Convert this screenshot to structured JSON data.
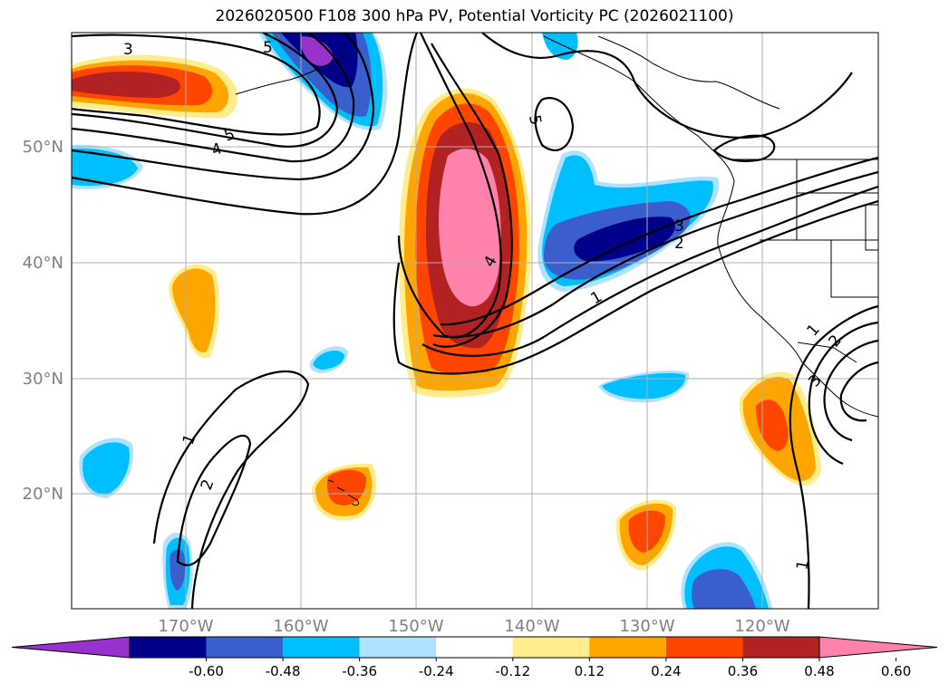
{
  "title": "2026020500 F108 300 hPa PV, Potential Vorticity PC (2026021100)",
  "lon_labels": [
    "170°W",
    "160°W",
    "150°W",
    "140°W",
    "130°W",
    "120°W"
  ],
  "lat_labels": [
    "50°N",
    "40°N",
    "30°N",
    "20°N"
  ],
  "colorbar": {
    "levels": [
      "-0.60",
      "-0.48",
      "-0.36",
      "-0.24",
      "-0.12",
      "0.12",
      "0.24",
      "0.36",
      "0.48",
      "0.60"
    ],
    "colors": [
      "#9932CC",
      "#00008B",
      "#3A5FCD",
      "#00BFFF",
      "#B0E2FF",
      "#FFFFFF",
      "#FFEC8B",
      "#FFA500",
      "#FF4500",
      "#B22222",
      "#FF82AB"
    ]
  },
  "contour_labels": [
    "3",
    "5",
    "4",
    "5",
    "5",
    "3",
    "2",
    "4",
    "1",
    "1",
    "2",
    "1",
    "2",
    "3",
    "1"
  ],
  "colors": {
    "axis_tick_label": "#808080",
    "contour": "#000000",
    "grid": "#b0b0b0"
  }
}
